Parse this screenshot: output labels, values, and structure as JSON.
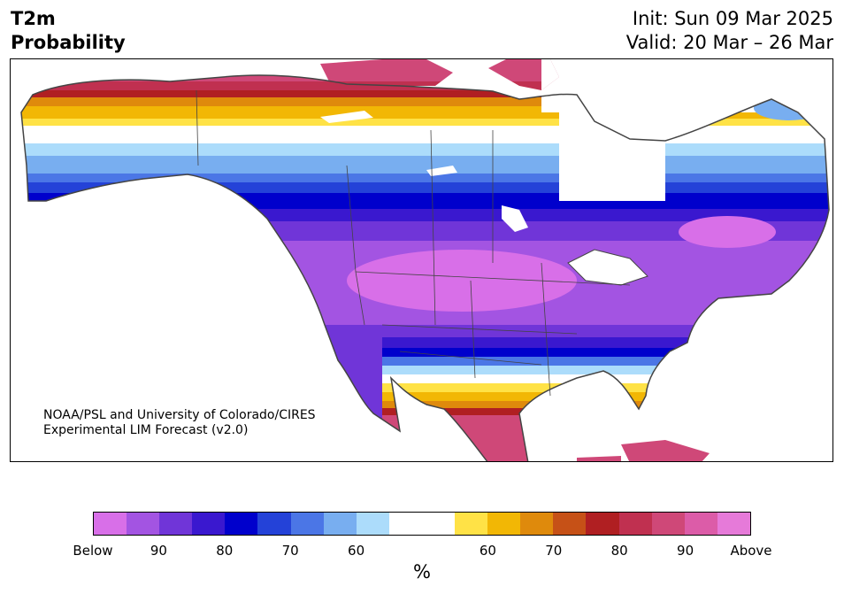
{
  "title": {
    "line1": "T2m",
    "line2": "Probability"
  },
  "dates": {
    "init": "Init: Sun 09 Mar 2025",
    "valid": "Valid: 20 Mar – 26 Mar"
  },
  "credit": {
    "line1": "NOAA/PSL and University of Colorado/CIRES",
    "line2": "Experimental LIM Forecast (v2.0)"
  },
  "colorbar": {
    "colors": [
      "#d86fe8",
      "#a354e2",
      "#7035d8",
      "#3a18cf",
      "#0000cc",
      "#2442d8",
      "#4b76e6",
      "#78aef0",
      "#acdcfb",
      "#ffffff",
      "#ffffff",
      "#ffe246",
      "#f2b705",
      "#df8a0c",
      "#c65117",
      "#b01f22",
      "#c03050",
      "#cf4878",
      "#dc5ca8",
      "#e67ad9"
    ],
    "labels": [
      "Below",
      "90",
      "80",
      "70",
      "60",
      "60",
      "70",
      "80",
      "90",
      "Above"
    ],
    "unit": "%"
  }
}
